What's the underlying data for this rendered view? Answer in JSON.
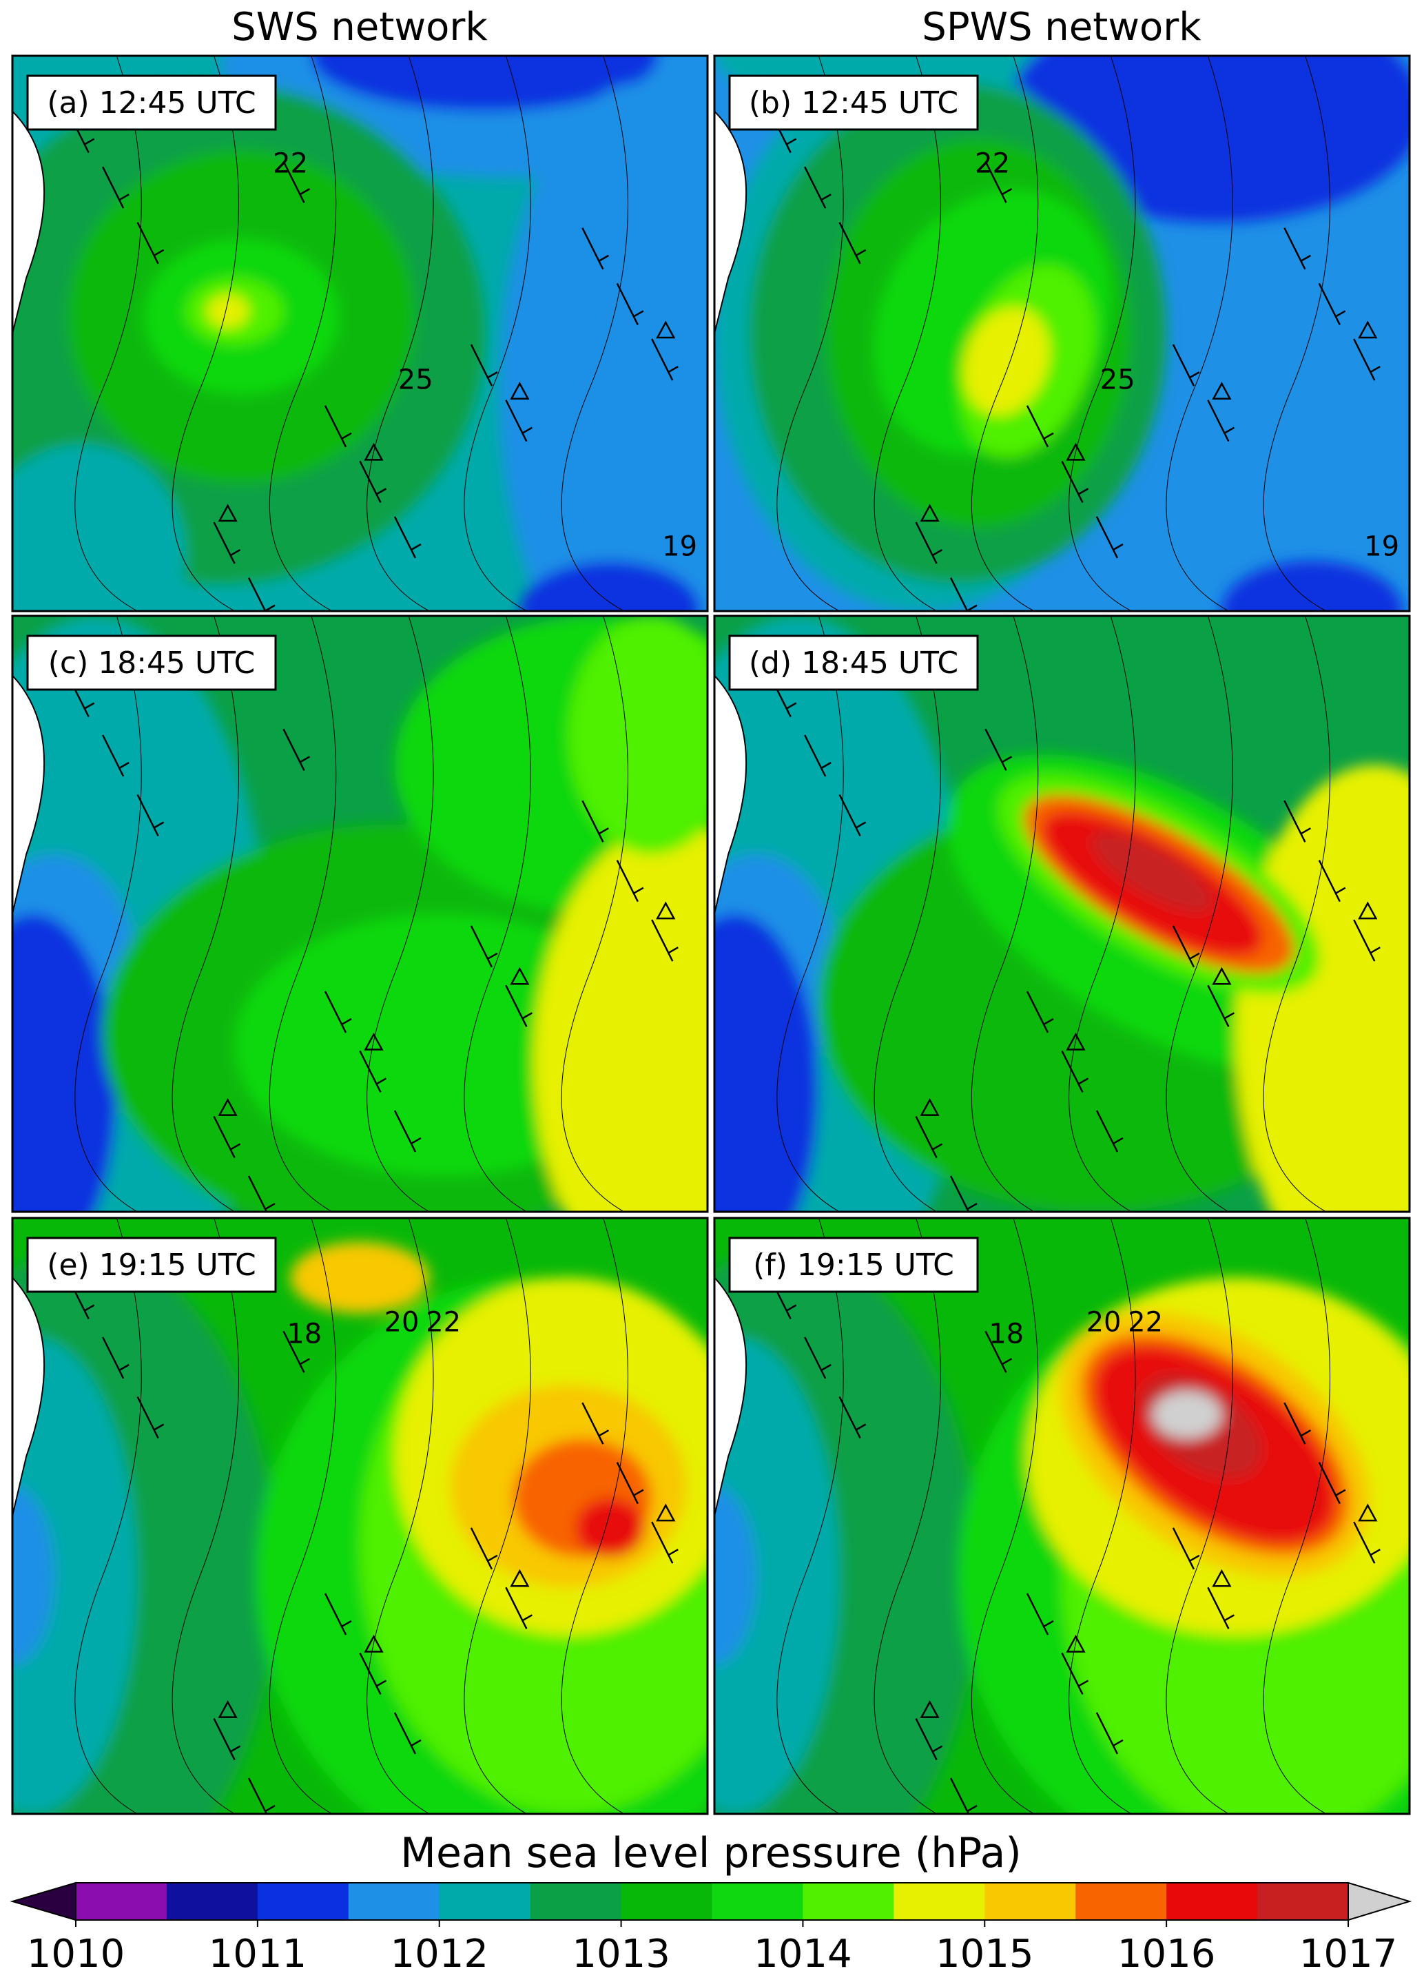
{
  "columns": [
    "SWS network",
    "SPWS network"
  ],
  "panels": [
    {
      "label": "(a) 12:45 UTC",
      "contour_labels": [
        22,
        25,
        19
      ]
    },
    {
      "label": "(b) 12:45 UTC",
      "contour_labels": [
        22,
        25,
        19
      ]
    },
    {
      "label": "(c) 18:45 UTC",
      "contour_labels": []
    },
    {
      "label": "(d) 18:45 UTC",
      "contour_labels": []
    },
    {
      "label": "(e) 19:15 UTC",
      "contour_labels": [
        18,
        20,
        22
      ]
    },
    {
      "label": "(f) 19:15 UTC",
      "contour_labels": [
        18,
        20,
        22
      ]
    }
  ],
  "colorbar": {
    "title": "Mean sea level pressure (hPa)",
    "min": 1010,
    "max": 1017,
    "ticks": [
      1010,
      1011,
      1012,
      1013,
      1014,
      1015,
      1016,
      1017
    ],
    "colors": [
      "#8a0db0",
      "#10109e",
      "#0a30e0",
      "#1e90e6",
      "#00aaaa",
      "#0aa046",
      "#08b808",
      "#10d810",
      "#50f000",
      "#e6f000",
      "#f8c800",
      "#f86400",
      "#e80a0a",
      "#c82020"
    ],
    "under_color": "#2a0040",
    "over_color": "#d0d0d0"
  }
}
